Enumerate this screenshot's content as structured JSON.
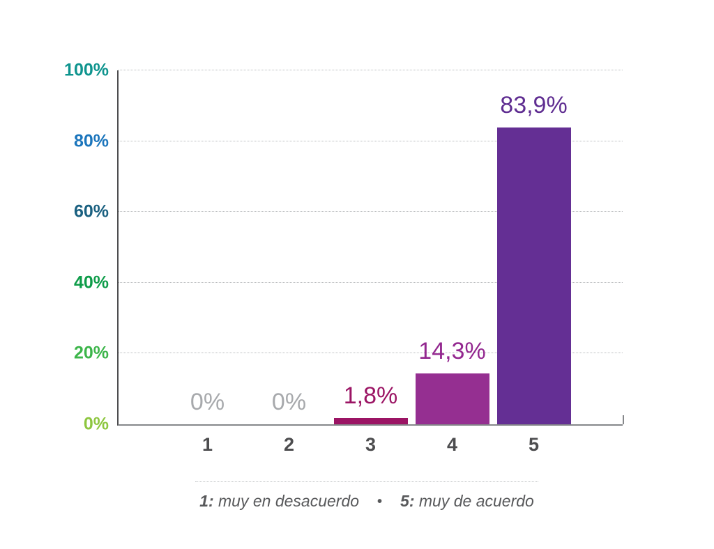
{
  "chart_data": {
    "type": "bar",
    "title": "",
    "xlabel": "",
    "ylabel": "",
    "categories": [
      "1",
      "2",
      "3",
      "4",
      "5"
    ],
    "values": [
      0,
      0,
      1.8,
      14.3,
      83.9
    ],
    "value_labels": [
      "0%",
      "0%",
      "1,8%",
      "14,3%",
      "83,9%"
    ],
    "bar_colors": [
      "#9B1464",
      "#9B1464",
      "#9B1464",
      "#952F91",
      "#642F94"
    ],
    "value_label_colors": [
      "#A7A9AC",
      "#A7A9AC",
      "#9B1464",
      "#93278F",
      "#5F2D91"
    ],
    "ylim": [
      0,
      100
    ],
    "yticks": [
      {
        "label": "0%",
        "value": 0,
        "color": "#8DC63F"
      },
      {
        "label": "20%",
        "value": 20,
        "color": "#3CB54A"
      },
      {
        "label": "40%",
        "value": 40,
        "color": "#0E9C49"
      },
      {
        "label": "60%",
        "value": 60,
        "color": "#1A6080"
      },
      {
        "label": "80%",
        "value": 80,
        "color": "#1B75BC"
      },
      {
        "label": "100%",
        "value": 100,
        "color": "#0E948E"
      }
    ],
    "grid": "horizontal dotted lines at 20% intervals",
    "legend": "none"
  },
  "footnote": {
    "key_low": "1:",
    "text_low": " muy en desacuerdo",
    "separator": "•",
    "key_high": "5:",
    "text_high": " muy de acuerdo"
  }
}
